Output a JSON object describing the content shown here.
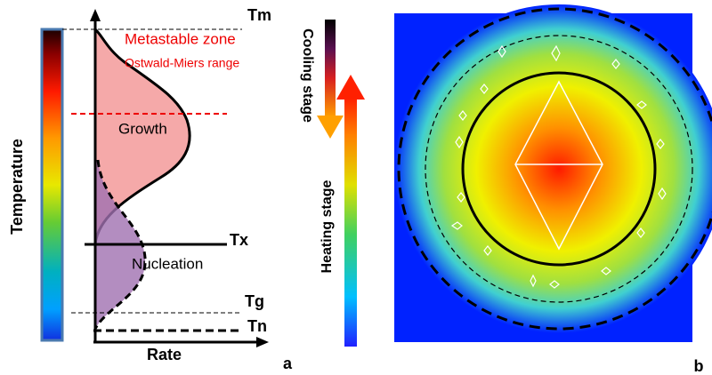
{
  "panel_a": {
    "temperature_label": "Temperature",
    "tm": "Tm",
    "metastable_zone": "Metastable zone",
    "ostwald_miers": "Ostwald-Miers range",
    "growth": "Growth",
    "tx": "Tx",
    "nucleation": "Nucleation",
    "tg": "Tg",
    "tn": "Tn",
    "rate": "Rate",
    "cooling": "Cooling stage",
    "heating": "Heating stage",
    "letter": "a"
  },
  "panel_b": {
    "letter": "b"
  }
}
